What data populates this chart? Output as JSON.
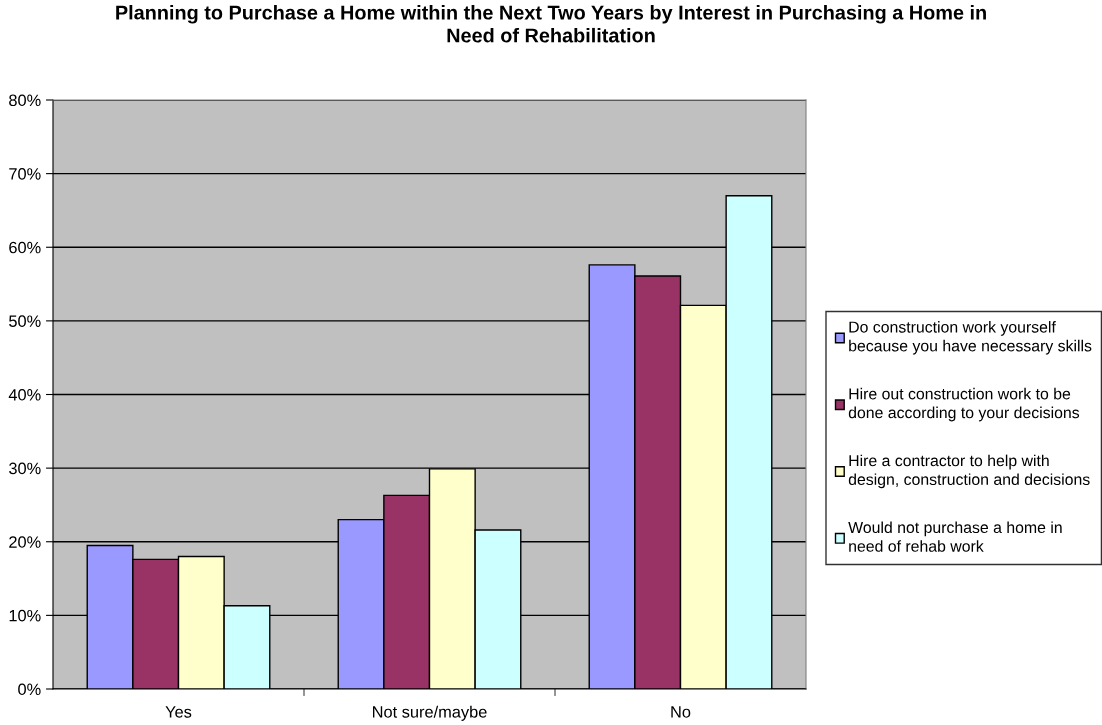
{
  "chart_data": {
    "type": "bar",
    "title": "Planning to Purchase a Home within the Next Two Years by Interest in Purchasing a Home in\nNeed of Rehabilitation",
    "categories": [
      "Yes",
      "Not sure/maybe",
      "No"
    ],
    "series": [
      {
        "name": "Do construction work yourself\nbecause you have necessary skills",
        "color": "#9999ff",
        "values": [
          19.5,
          23.0,
          57.6
        ]
      },
      {
        "name": "Hire out construction work to be\ndone according to your decisions",
        "color": "#993366",
        "values": [
          17.6,
          26.3,
          56.1
        ]
      },
      {
        "name": "Hire a contractor to help with\ndesign, construction and decisions",
        "color": "#ffffcc",
        "values": [
          18.0,
          29.9,
          52.1
        ]
      },
      {
        "name": "Would not purchase a home in\nneed of rehab work",
        "color": "#ccffff",
        "values": [
          11.3,
          21.6,
          67.0
        ]
      }
    ],
    "ylim": [
      0,
      80
    ],
    "yticks": [
      {
        "value": 0,
        "label": "0%"
      },
      {
        "value": 10,
        "label": "10%"
      },
      {
        "value": 20,
        "label": "20%"
      },
      {
        "value": 30,
        "label": "30%"
      },
      {
        "value": 40,
        "label": "40%"
      },
      {
        "value": 50,
        "label": "50%"
      },
      {
        "value": 60,
        "label": "60%"
      },
      {
        "value": 70,
        "label": "70%"
      },
      {
        "value": 80,
        "label": "80%"
      }
    ],
    "grid": "y",
    "legend": "right"
  }
}
